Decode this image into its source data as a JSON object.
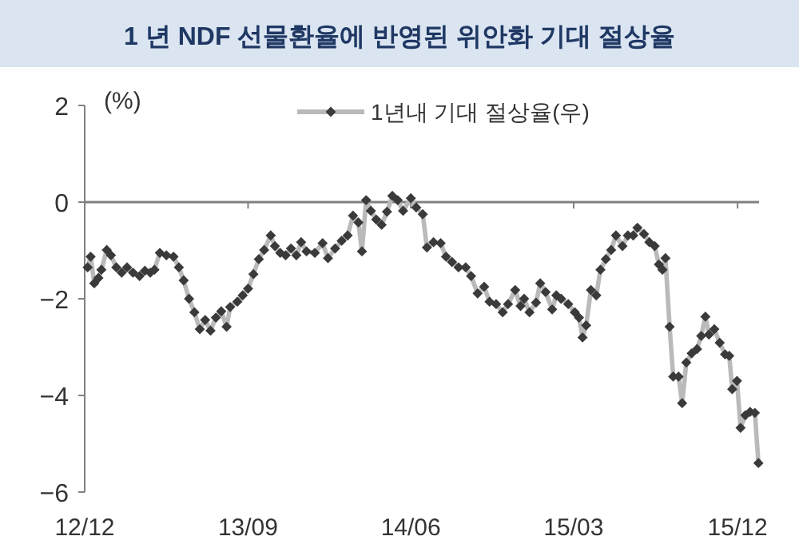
{
  "chart_data": {
    "type": "line",
    "title": "1 년 NDF 선물환율에 반영된 위안화 기대 절상율",
    "ylabel": "(%)",
    "legend": "top right",
    "marker": "diamond",
    "xlim": [
      "2012-12-01",
      "2016-01-06"
    ],
    "ylim": [
      -6,
      2
    ],
    "xticks": [
      {
        "value": "2012-12-01",
        "label": "12/12"
      },
      {
        "value": "2013-09-01",
        "label": "13/09"
      },
      {
        "value": "2014-06-01",
        "label": "14/06"
      },
      {
        "value": "2015-03-01",
        "label": "15/03"
      },
      {
        "value": "2015-12-01",
        "label": "15/12"
      }
    ],
    "yticks": [
      {
        "value": -6,
        "label": "−6"
      },
      {
        "value": -4,
        "label": "−4"
      },
      {
        "value": -2,
        "label": "−2"
      },
      0,
      2
    ],
    "series": [
      {
        "name": "1년내 기대 절상율(우)",
        "color": "#3a3a3a",
        "x": [
          "2012-12-06",
          "2012-12-11",
          "2012-12-17",
          "2012-12-24",
          "2012-12-29",
          "2013-01-07",
          "2013-01-14",
          "2013-01-23",
          "2013-02-01",
          "2013-02-10",
          "2013-02-20",
          "2013-03-03",
          "2013-03-12",
          "2013-03-21",
          "2013-03-28",
          "2013-04-06",
          "2013-04-17",
          "2013-04-29",
          "2013-05-08",
          "2013-05-16",
          "2013-05-25",
          "2013-06-03",
          "2013-06-12",
          "2013-06-21",
          "2013-06-30",
          "2013-07-09",
          "2013-07-18",
          "2013-07-27",
          "2013-08-02",
          "2013-08-14",
          "2013-08-23",
          "2013-09-01",
          "2013-09-10",
          "2013-09-19",
          "2013-09-28",
          "2013-10-09",
          "2013-10-16",
          "2013-10-25",
          "2013-11-03",
          "2013-11-12",
          "2013-11-21",
          "2013-11-29",
          "2013-12-08",
          "2013-12-22",
          "2014-01-04",
          "2014-01-13",
          "2014-01-25",
          "2014-02-05",
          "2014-02-15",
          "2014-02-24",
          "2014-03-05",
          "2014-03-11",
          "2014-03-18",
          "2014-03-26",
          "2014-04-04",
          "2014-04-13",
          "2014-04-22",
          "2014-05-01",
          "2014-05-10",
          "2014-05-19",
          "2014-06-01",
          "2014-06-10",
          "2014-06-21",
          "2014-06-28",
          "2014-07-09",
          "2014-07-21",
          "2014-07-30",
          "2014-08-09",
          "2014-08-20",
          "2014-09-01",
          "2014-09-10",
          "2014-09-21",
          "2014-10-02",
          "2014-10-11",
          "2014-10-22",
          "2014-11-02",
          "2014-11-11",
          "2014-11-23",
          "2014-12-02",
          "2014-12-08",
          "2014-12-17",
          "2014-12-28",
          "2015-01-04",
          "2015-01-13",
          "2015-01-24",
          "2015-01-31",
          "2015-02-08",
          "2015-02-20",
          "2015-03-03",
          "2015-03-10",
          "2015-03-16",
          "2015-03-22",
          "2015-03-30",
          "2015-04-08",
          "2015-04-15",
          "2015-04-24",
          "2015-05-03",
          "2015-05-11",
          "2015-05-22",
          "2015-05-31",
          "2015-06-09",
          "2015-06-16",
          "2015-06-27",
          "2015-07-06",
          "2015-07-15",
          "2015-07-22",
          "2015-07-28",
          "2015-08-02",
          "2015-08-09",
          "2015-08-15",
          "2015-08-24",
          "2015-08-30",
          "2015-09-06",
          "2015-09-15",
          "2015-09-24",
          "2015-10-01",
          "2015-10-08",
          "2015-10-14",
          "2015-10-23",
          "2015-11-01",
          "2015-11-10",
          "2015-11-17",
          "2015-11-22",
          "2015-11-30",
          "2015-12-06",
          "2015-12-14",
          "2015-12-22",
          "2015-12-30",
          "2016-01-05"
        ],
        "values": [
          -1.35,
          -1.13,
          -1.68,
          -1.57,
          -1.4,
          -0.99,
          -1.1,
          -1.35,
          -1.46,
          -1.35,
          -1.46,
          -1.53,
          -1.42,
          -1.46,
          -1.4,
          -1.05,
          -1.1,
          -1.13,
          -1.35,
          -1.62,
          -2.0,
          -2.28,
          -2.63,
          -2.44,
          -2.66,
          -2.39,
          -2.26,
          -2.58,
          -2.17,
          -2.06,
          -1.93,
          -1.79,
          -1.49,
          -1.18,
          -0.99,
          -0.69,
          -0.91,
          -1.05,
          -1.1,
          -0.96,
          -1.1,
          -0.83,
          -1.02,
          -1.05,
          -0.85,
          -1.16,
          -0.96,
          -0.8,
          -0.69,
          -0.28,
          -0.42,
          -1.02,
          0.04,
          -0.18,
          -0.36,
          -0.47,
          -0.2,
          0.13,
          0.04,
          -0.18,
          0.08,
          -0.11,
          -0.25,
          -0.94,
          -0.83,
          -0.85,
          -1.13,
          -1.24,
          -1.35,
          -1.35,
          -1.53,
          -1.89,
          -1.75,
          -2.06,
          -2.11,
          -2.28,
          -2.11,
          -1.82,
          -2.15,
          -2.0,
          -2.28,
          -2.08,
          -1.68,
          -1.86,
          -2.22,
          -1.93,
          -2.0,
          -2.11,
          -2.28,
          -2.39,
          -2.8,
          -2.55,
          -1.82,
          -1.93,
          -1.4,
          -1.18,
          -0.99,
          -0.69,
          -0.91,
          -0.69,
          -0.69,
          -0.53,
          -0.66,
          -0.83,
          -0.91,
          -1.29,
          -1.4,
          -1.16,
          -2.58,
          -3.61,
          -3.61,
          -4.16,
          -3.32,
          -3.13,
          -3.04,
          -2.77,
          -2.37,
          -2.74,
          -2.63,
          -2.91,
          -3.15,
          -3.18,
          -3.87,
          -3.7,
          -4.67,
          -4.41,
          -4.34,
          -4.36,
          -5.4
        ]
      }
    ]
  }
}
